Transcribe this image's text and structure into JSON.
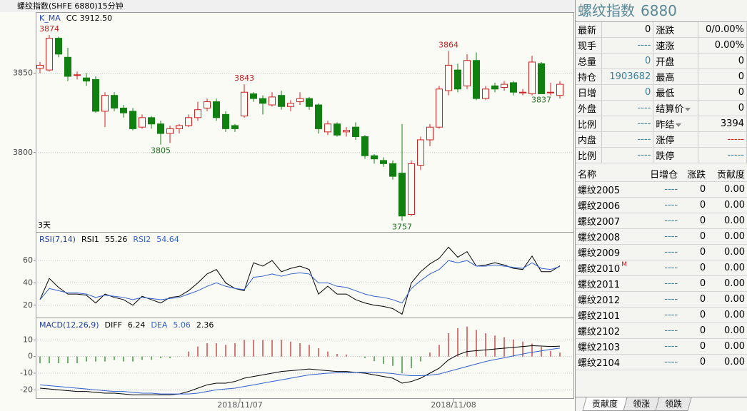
{
  "window_title": "螺纹指数(SHFE 6880)15分钟",
  "chart_data": [
    {
      "type": "candlestick",
      "legend": [
        "K_MA",
        "CC 3912.50"
      ],
      "legend_colors": [
        "#2040c0",
        "#000000"
      ],
      "period_label": "3天",
      "x_labels": [
        "2018/11/07",
        "2018/11/08"
      ],
      "ylim": [
        3750,
        3888
      ],
      "yticks": [
        3800,
        3850
      ],
      "grid": true,
      "up_color": "#d02020",
      "down_color": "#108010",
      "open": [
        3853,
        3852,
        3872,
        3860,
        3849,
        3847,
        3846,
        3826,
        3836,
        3828,
        3826,
        3816,
        3822,
        3818,
        3812,
        3815,
        3817,
        3822,
        3828,
        3832,
        3824,
        3817,
        3823,
        3837,
        3834,
        3830,
        3836,
        3829,
        3832,
        3834,
        3830,
        3813,
        3818,
        3813,
        3816,
        3810,
        3798,
        3795,
        3793,
        3787,
        3761,
        3792,
        3808,
        3816,
        3839,
        3852,
        3842,
        3858,
        3834,
        3842,
        3841,
        3844,
        3838,
        3837,
        3856,
        3838,
        3836
      ],
      "high": [
        3857,
        3874,
        3873,
        3866,
        3851,
        3850,
        3848,
        3838,
        3838,
        3830,
        3828,
        3824,
        3823,
        3820,
        3817,
        3818,
        3824,
        3832,
        3834,
        3834,
        3826,
        3818,
        3843,
        3838,
        3836,
        3838,
        3839,
        3833,
        3838,
        3835,
        3831,
        3820,
        3819,
        3816,
        3819,
        3811,
        3799,
        3797,
        3795,
        3818,
        3795,
        3810,
        3818,
        3842,
        3864,
        3856,
        3862,
        3863,
        3842,
        3844,
        3845,
        3845,
        3840,
        3861,
        3857,
        3844,
        3845
      ],
      "low": [
        3850,
        3851,
        3860,
        3845,
        3846,
        3842,
        3825,
        3816,
        3826,
        3822,
        3814,
        3815,
        3815,
        3805,
        3806,
        3812,
        3816,
        3820,
        3826,
        3820,
        3813,
        3813,
        3822,
        3832,
        3824,
        3829,
        3827,
        3826,
        3830,
        3827,
        3812,
        3811,
        3810,
        3810,
        3808,
        3796,
        3793,
        3791,
        3783,
        3757,
        3760,
        3789,
        3804,
        3815,
        3836,
        3838,
        3840,
        3833,
        3833,
        3838,
        3839,
        3836,
        3836,
        3836,
        3837,
        3836,
        3834
      ],
      "close": [
        3855,
        3872,
        3862,
        3848,
        3849,
        3845,
        3826,
        3836,
        3828,
        3825,
        3815,
        3822,
        3818,
        3812,
        3815,
        3817,
        3822,
        3827,
        3832,
        3822,
        3815,
        3815,
        3838,
        3834,
        3831,
        3835,
        3829,
        3831,
        3834,
        3829,
        3815,
        3818,
        3811,
        3814,
        3810,
        3798,
        3796,
        3793,
        3785,
        3760,
        3793,
        3808,
        3816,
        3840,
        3855,
        3840,
        3858,
        3834,
        3840,
        3840,
        3843,
        3838,
        3838,
        3857,
        3837,
        3838,
        3843
      ],
      "annotations": [
        3874,
        3805,
        3843,
        3757,
        3864,
        3837
      ]
    },
    {
      "type": "line",
      "title": "RSI(7,14)",
      "ylim": [
        9,
        85
      ],
      "yticks": [
        20,
        40,
        60
      ],
      "grid": true,
      "series": [
        {
          "name": "RSI1",
          "color": "#000000",
          "values": [
            25,
            44,
            36,
            30,
            30,
            29,
            22,
            30,
            27,
            25,
            20,
            28,
            25,
            22,
            27,
            28,
            33,
            40,
            48,
            52,
            40,
            35,
            33,
            58,
            55,
            60,
            50,
            53,
            55,
            52,
            30,
            37,
            30,
            30,
            25,
            22,
            20,
            19,
            17,
            12,
            40,
            50,
            57,
            62,
            72,
            63,
            68,
            55,
            56,
            58,
            56,
            53,
            52,
            64,
            50,
            50,
            55.26
          ]
        },
        {
          "name": "RSI2",
          "color": "#3060d0",
          "values": [
            25,
            35,
            33,
            31,
            31,
            30,
            27,
            29,
            28,
            27,
            25,
            27,
            26,
            25,
            26,
            27,
            30,
            33,
            37,
            40,
            37,
            35,
            34,
            45,
            46,
            48,
            46,
            48,
            49,
            48,
            40,
            40,
            37,
            36,
            33,
            30,
            28,
            27,
            25,
            22,
            35,
            42,
            48,
            52,
            60,
            58,
            60,
            55,
            55,
            56,
            55,
            54,
            53,
            58,
            53,
            52,
            54.64
          ]
        }
      ]
    },
    {
      "type": "macd",
      "title": "MACD(12,26,9)",
      "ylim": [
        -25,
        23
      ],
      "yticks": [
        -20,
        -10,
        0,
        10
      ],
      "grid": true,
      "series": [
        {
          "name": "DIFF",
          "color": "#000000",
          "values": [
            -19,
            -19.5,
            -20,
            -20.5,
            -21,
            -21,
            -21.5,
            -22,
            -22,
            -22.5,
            -23,
            -23,
            -23,
            -23,
            -23,
            -22.5,
            -21,
            -19,
            -17,
            -16,
            -16,
            -15,
            -13,
            -12,
            -11,
            -10,
            -9,
            -8.5,
            -8,
            -7.5,
            -8,
            -8.5,
            -9,
            -9,
            -9.5,
            -10,
            -11,
            -12,
            -13,
            -16,
            -15,
            -13,
            -10,
            -7,
            -2,
            1,
            3,
            3.5,
            4,
            4.5,
            5,
            5.5,
            6,
            6.5,
            6.3,
            6,
            6.24
          ]
        },
        {
          "name": "DEA",
          "color": "#3060d0",
          "values": [
            -17,
            -17.5,
            -18,
            -18.5,
            -19,
            -19.5,
            -20,
            -20.5,
            -21,
            -21,
            -21.5,
            -22,
            -22,
            -22.5,
            -22.5,
            -22.5,
            -22.5,
            -22,
            -21,
            -20,
            -19.5,
            -19,
            -18,
            -17,
            -16,
            -15,
            -14,
            -13,
            -12,
            -11,
            -10.5,
            -10,
            -9.8,
            -9.6,
            -9.5,
            -9.5,
            -9.6,
            -9.8,
            -10.2,
            -11,
            -11.5,
            -11.5,
            -11.2,
            -10.5,
            -9,
            -7.5,
            -6,
            -4.5,
            -3,
            -1.8,
            -0.8,
            0.4,
            1.5,
            2.6,
            3.4,
            4.3,
            5.06
          ]
        }
      ],
      "histogram": {
        "up_color": "#c02020",
        "down_color": "#108010",
        "values": [
          -4,
          -4,
          -4,
          -4,
          -4,
          -3,
          -3,
          -3,
          -2,
          -3,
          -3,
          -2,
          -2,
          -1,
          -1,
          0,
          3,
          6,
          8,
          8,
          7,
          8,
          10,
          10,
          10,
          10,
          10,
          9,
          8,
          7,
          5,
          3,
          1.6,
          1.2,
          0,
          -1,
          -2.8,
          -4.4,
          -5.6,
          -10,
          -7,
          -3,
          2.4,
          7,
          14,
          17,
          18,
          16,
          14,
          12.6,
          11.6,
          10.2,
          9,
          7.8,
          5.8,
          3.4,
          2.36
        ]
      }
    }
  ],
  "quote": {
    "name": "螺纹指数",
    "code": "6880",
    "rows": [
      {
        "left": [
          "最新",
          "0"
        ],
        "right": [
          "涨跌",
          "0/0.00%"
        ]
      },
      {
        "left": [
          "现手",
          "----"
        ],
        "left_color": "#3a7f9a",
        "right": [
          "速涨",
          "0.00%"
        ]
      },
      {
        "left": [
          "总量",
          "0"
        ],
        "left_color": "#3a7f9a",
        "right": [
          "开盘",
          "0"
        ]
      },
      {
        "left": [
          "持仓",
          "1903682"
        ],
        "left_color": "#3a7f9a",
        "right": [
          "最高",
          "0"
        ]
      },
      {
        "left": [
          "日增",
          "0"
        ],
        "left_color": "#3a7f9a",
        "right": [
          "最低",
          "0"
        ]
      },
      {
        "left": [
          "外盘",
          "----"
        ],
        "left_color": "#3a7f9a",
        "right": [
          "结算价",
          "0"
        ],
        "right_menu": true
      },
      {
        "left": [
          "比例",
          "----"
        ],
        "left_color": "#3a7f9a",
        "right": [
          "昨结",
          "3394"
        ],
        "right_menu": true
      },
      {
        "left": [
          "内盘",
          "----"
        ],
        "left_color": "#3a7f9a",
        "right": [
          "涨停",
          "-----"
        ],
        "right_color": "#d02020"
      },
      {
        "left": [
          "比例",
          "----"
        ],
        "left_color": "#3a7f9a",
        "right": [
          "跌停",
          "-----"
        ],
        "right_color": "#3a7f9a"
      }
    ]
  },
  "contributions": {
    "headers": [
      "名称",
      "日增仓",
      "涨跌",
      "贡献度"
    ],
    "rows": [
      {
        "name": "螺纹2005",
        "oi": "----",
        "chg": "0",
        "contrib": "0.00"
      },
      {
        "name": "螺纹2006",
        "oi": "----",
        "chg": "0",
        "contrib": "0.00"
      },
      {
        "name": "螺纹2007",
        "oi": "----",
        "chg": "0",
        "contrib": "0.00"
      },
      {
        "name": "螺纹2008",
        "oi": "----",
        "chg": "0",
        "contrib": "0.00"
      },
      {
        "name": "螺纹2009",
        "oi": "----",
        "chg": "0",
        "contrib": "0.00"
      },
      {
        "name": "螺纹2010",
        "badge": "M",
        "oi": "----",
        "chg": "0",
        "contrib": "0.00"
      },
      {
        "name": "螺纹2011",
        "oi": "----",
        "chg": "0",
        "contrib": "0.00"
      },
      {
        "name": "螺纹2012",
        "oi": "----",
        "chg": "0",
        "contrib": "0.00"
      },
      {
        "name": "螺纹2101",
        "oi": "----",
        "chg": "0",
        "contrib": "0.00"
      },
      {
        "name": "螺纹2102",
        "oi": "----",
        "chg": "0",
        "contrib": "0.00"
      },
      {
        "name": "螺纹2103",
        "oi": "----",
        "chg": "0",
        "contrib": "0.00"
      },
      {
        "name": "螺纹2104",
        "oi": "----",
        "chg": "0",
        "contrib": "0.00"
      }
    ]
  },
  "tabs": [
    "贡献度",
    "领涨",
    "领跌"
  ]
}
